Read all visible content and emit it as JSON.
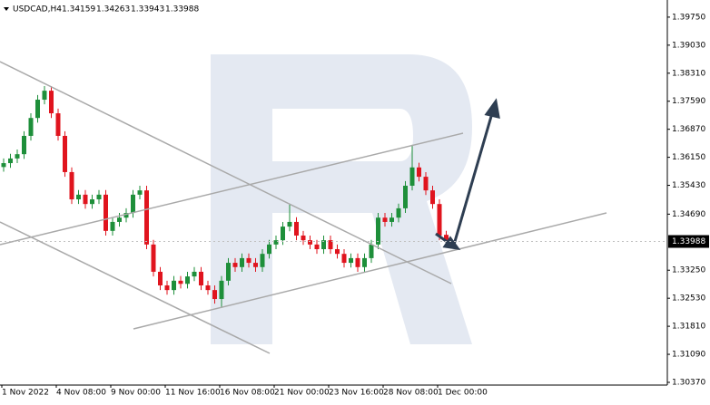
{
  "chart_data": {
    "type": "candlestick",
    "title": "USDCAD,H4",
    "up_color": "#1e8f3a",
    "down_color": "#e0141e",
    "ylim": [
      1.303,
      1.4019
    ],
    "yticks": [
      {
        "value": 1.3037,
        "label": "1.30370"
      },
      {
        "value": 1.3109,
        "label": "1.31090"
      },
      {
        "value": 1.3181,
        "label": "1.31810"
      },
      {
        "value": 1.3253,
        "label": "1.32530"
      },
      {
        "value": 1.3325,
        "label": "1.33250"
      },
      {
        "value": 1.3469,
        "label": "1.34690"
      },
      {
        "value": 1.3543,
        "label": "1.35430"
      },
      {
        "value": 1.3615,
        "label": "1.36150"
      },
      {
        "value": 1.3687,
        "label": "1.36870"
      },
      {
        "value": 1.3759,
        "label": "1.37590"
      },
      {
        "value": 1.3831,
        "label": "1.38310"
      },
      {
        "value": 1.3903,
        "label": "1.39030"
      },
      {
        "value": 1.3975,
        "label": "1.39750"
      }
    ],
    "categories": [
      "1 Nov 2022",
      null,
      null,
      null,
      null,
      null,
      null,
      null,
      "4 Nov 08:00",
      null,
      null,
      null,
      null,
      null,
      null,
      null,
      "9 Nov 00:00",
      null,
      null,
      null,
      null,
      null,
      null,
      null,
      "11 Nov 16:00",
      null,
      null,
      null,
      null,
      null,
      null,
      null,
      "16 Nov 08:00",
      null,
      null,
      null,
      null,
      null,
      null,
      null,
      "21 Nov 00:00",
      null,
      null,
      null,
      null,
      null,
      null,
      null,
      "23 Nov 16:00",
      null,
      null,
      null,
      null,
      null,
      null,
      null,
      "28 Nov 08:00",
      null,
      null,
      null,
      null,
      null,
      null,
      null,
      "1 Dec 00:00",
      null
    ],
    "open": [
      1.359,
      1.36,
      1.3612,
      1.3623,
      1.367,
      1.3716,
      1.3763,
      1.3786,
      1.3728,
      1.367,
      1.3577,
      1.3507,
      1.3519,
      1.3495,
      1.3507,
      1.3519,
      1.3426,
      1.3449,
      1.346,
      1.3472,
      1.3519,
      1.353,
      1.3391,
      1.3321,
      1.3286,
      1.3274,
      1.3298,
      1.329,
      1.3309,
      1.3321,
      1.3286,
      1.3274,
      1.3251,
      1.3298,
      1.3344,
      1.3333,
      1.3356,
      1.3344,
      1.3333,
      1.3367,
      1.3391,
      1.3402,
      1.3437,
      1.3449,
      1.3414,
      1.3402,
      1.3391,
      1.3379,
      1.3402,
      1.3379,
      1.3367,
      1.3344,
      1.3356,
      1.3333,
      1.3356,
      1.3391,
      1.346,
      1.3449,
      1.346,
      1.3484,
      1.3542,
      1.3589,
      1.3565,
      1.353,
      1.3495,
      1.34159
    ],
    "high": [
      1.3612,
      1.3624,
      1.3635,
      1.3682,
      1.3728,
      1.3775,
      1.3798,
      1.3798,
      1.374,
      1.3682,
      1.3589,
      1.3531,
      1.3531,
      1.3519,
      1.3531,
      1.3531,
      1.3461,
      1.3472,
      1.3484,
      1.3531,
      1.3542,
      1.3542,
      1.3403,
      1.3333,
      1.3298,
      1.331,
      1.331,
      1.3321,
      1.3333,
      1.3333,
      1.3298,
      1.3286,
      1.331,
      1.3356,
      1.3356,
      1.3368,
      1.3368,
      1.3356,
      1.3379,
      1.3403,
      1.3414,
      1.3449,
      1.3495,
      1.3461,
      1.3426,
      1.3414,
      1.3403,
      1.3414,
      1.3414,
      1.3391,
      1.3379,
      1.3368,
      1.3368,
      1.3368,
      1.3403,
      1.3472,
      1.3472,
      1.3472,
      1.3496,
      1.3554,
      1.3647,
      1.3601,
      1.3577,
      1.3542,
      1.3507,
      1.34263
    ],
    "low": [
      1.3578,
      1.3588,
      1.36,
      1.3611,
      1.3658,
      1.3704,
      1.3751,
      1.3716,
      1.3658,
      1.3565,
      1.3495,
      1.3495,
      1.3483,
      1.3483,
      1.3495,
      1.3414,
      1.3414,
      1.3437,
      1.3448,
      1.346,
      1.3507,
      1.3379,
      1.3309,
      1.3274,
      1.3262,
      1.3262,
      1.3278,
      1.3278,
      1.3297,
      1.3274,
      1.3262,
      1.3239,
      1.3228,
      1.3286,
      1.3321,
      1.3321,
      1.3332,
      1.3321,
      1.3321,
      1.3355,
      1.3379,
      1.339,
      1.3425,
      1.3402,
      1.339,
      1.3379,
      1.3367,
      1.3367,
      1.3367,
      1.3355,
      1.3332,
      1.3332,
      1.3321,
      1.3321,
      1.3344,
      1.3379,
      1.3437,
      1.3437,
      1.3448,
      1.3472,
      1.353,
      1.3553,
      1.3518,
      1.3483,
      1.3402,
      1.33943
    ],
    "close": [
      1.36,
      1.3612,
      1.3623,
      1.367,
      1.3716,
      1.3763,
      1.3786,
      1.3728,
      1.367,
      1.3577,
      1.3507,
      1.3519,
      1.3495,
      1.3507,
      1.3519,
      1.3426,
      1.3449,
      1.346,
      1.3472,
      1.3519,
      1.353,
      1.3391,
      1.3321,
      1.3286,
      1.3274,
      1.3298,
      1.329,
      1.3309,
      1.3321,
      1.3286,
      1.3274,
      1.3251,
      1.3298,
      1.3344,
      1.3333,
      1.3356,
      1.3344,
      1.3333,
      1.3367,
      1.3391,
      1.3402,
      1.3437,
      1.3449,
      1.3414,
      1.3402,
      1.3391,
      1.3379,
      1.3402,
      1.3379,
      1.3367,
      1.3344,
      1.3356,
      1.3333,
      1.3356,
      1.3391,
      1.346,
      1.3449,
      1.346,
      1.3484,
      1.3542,
      1.3589,
      1.3565,
      1.353,
      1.3495,
      1.3414,
      1.33988
    ]
  }
}
